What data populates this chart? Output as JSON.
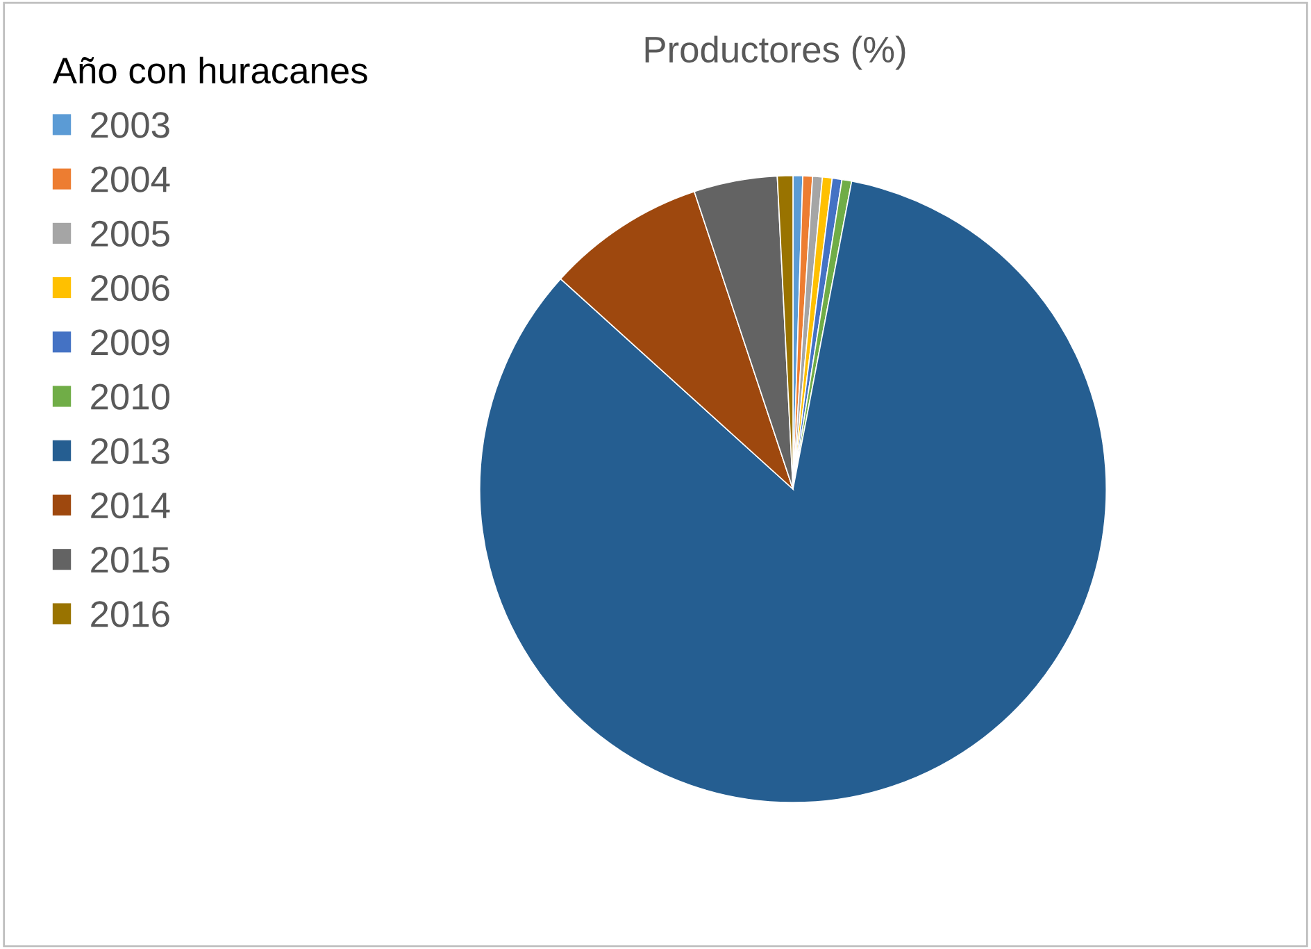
{
  "chart_data": {
    "type": "pie",
    "title": "Productores (%)",
    "legend_title": "Año con huracanes",
    "legend": "left",
    "categories": [
      "2003",
      "2004",
      "2005",
      "2006",
      "2009",
      "2010",
      "2013",
      "2014",
      "2015",
      "2016"
    ],
    "values": [
      0.5,
      0.5,
      0.5,
      0.5,
      0.5,
      0.5,
      83.7,
      8.2,
      4.3,
      0.8
    ],
    "colors": [
      "#5b9bd5",
      "#ed7d31",
      "#a5a5a5",
      "#ffc000",
      "#4472c4",
      "#70ad47",
      "#255e91",
      "#9e480e",
      "#636363",
      "#997300"
    ]
  }
}
